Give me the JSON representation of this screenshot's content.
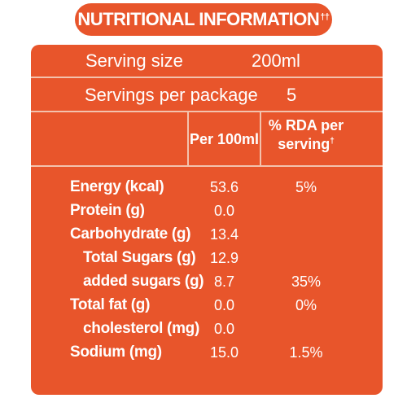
{
  "title": {
    "text": "NUTRITIONAL INFORMATION",
    "mark": "††"
  },
  "serving_size": {
    "label": "Serving size",
    "value": "200ml"
  },
  "servings_per_package": {
    "label": "Servings per package",
    "value": "5"
  },
  "columns": {
    "per100": "Per 100ml",
    "rda_line1": "% RDA per",
    "rda_line2": "serving",
    "rda_mark": "†"
  },
  "rows": [
    {
      "label": "Energy (kcal)",
      "per100": "53.6",
      "rda": "5%"
    },
    {
      "label": "Protein (g)",
      "per100": "0.0",
      "rda": ""
    },
    {
      "label": "Carbohydrate (g)",
      "per100": "13.4",
      "rda": ""
    },
    {
      "label": "Total Sugars (g)",
      "per100": "12.9",
      "rda": ""
    },
    {
      "label": "added sugars (g)",
      "per100": "8.7",
      "rda": "35%"
    },
    {
      "label": "Total fat (g)",
      "per100": "0.0",
      "rda": "0%"
    },
    {
      "label": "cholesterol (mg)",
      "per100": "0.0",
      "rda": ""
    },
    {
      "label": "Sodium (mg)",
      "per100": "15.0",
      "rda": "1.5%"
    }
  ],
  "colors": {
    "panel": "#e8552b",
    "rule": "#f3c2ad",
    "text": "#ffffff"
  }
}
